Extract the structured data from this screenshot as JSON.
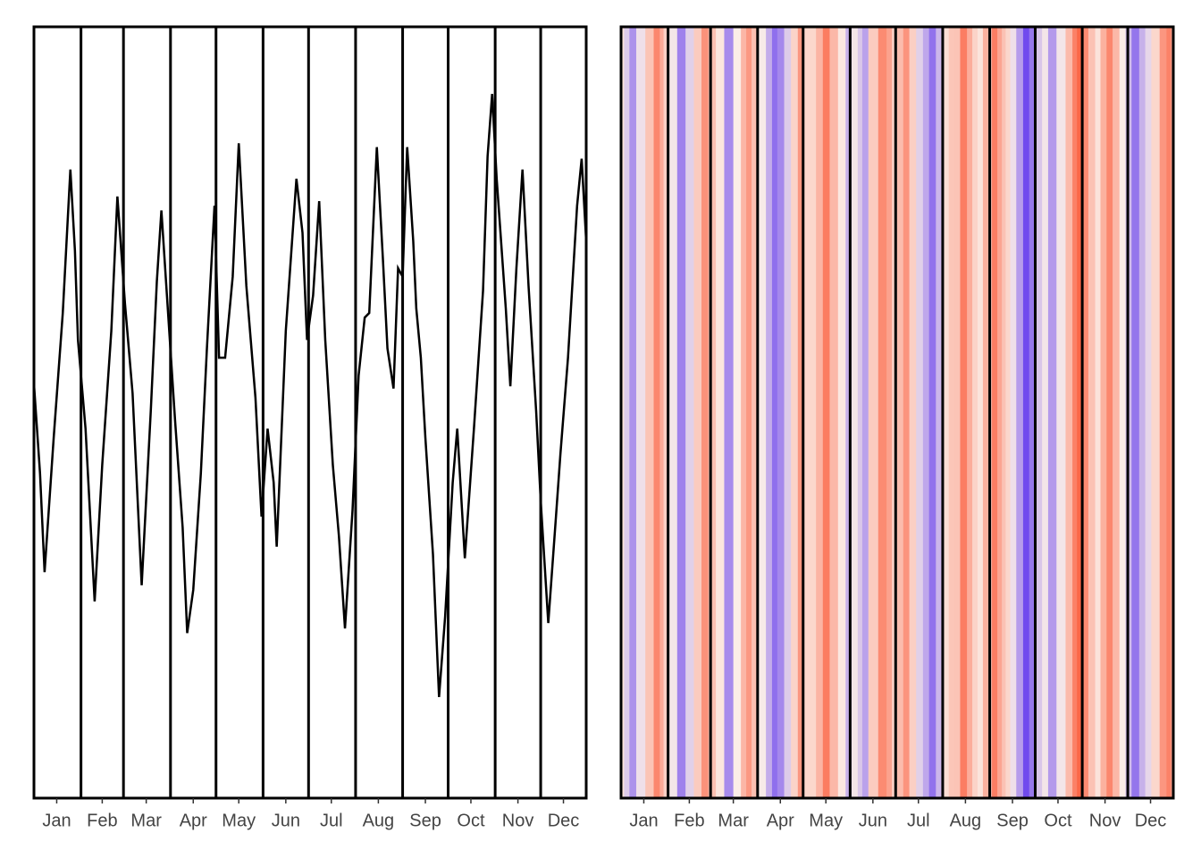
{
  "chart_data": [
    {
      "type": "line",
      "color": "#000000",
      "x": [
        1,
        5,
        8,
        14,
        20,
        25,
        28,
        30,
        35,
        41,
        46,
        52,
        56,
        61,
        66,
        72,
        78,
        82,
        85,
        89,
        94,
        99,
        102,
        106,
        111,
        115,
        120,
        123,
        127,
        132,
        136,
        141,
        147,
        151,
        155,
        159,
        161,
        167,
        174,
        178,
        181,
        185,
        189,
        193,
        198,
        202,
        206,
        211,
        215,
        219,
        222,
        227,
        231,
        234,
        238,
        241,
        244,
        247,
        251,
        253,
        256,
        259,
        264,
        268,
        272,
        277,
        280,
        285,
        291,
        297,
        300,
        303,
        306,
        312,
        315,
        319,
        323,
        327,
        332,
        335,
        340,
        345,
        348,
        353,
        359,
        362,
        365
      ],
      "values": [
        53.7,
        42.1,
        29.3,
        46.7,
        62.9,
        81.5,
        71.0,
        59.4,
        47.9,
        25.5,
        43.2,
        60.6,
        78.0,
        64.1,
        52.5,
        27.6,
        50.2,
        67.0,
        76.2,
        64.1,
        49.0,
        35.1,
        21.4,
        27.0,
        42.1,
        58.3,
        76.8,
        57.1,
        57.1,
        67.6,
        84.9,
        66.4,
        51.9,
        36.5,
        47.9,
        40.9,
        32.6,
        60.6,
        80.3,
        73.3,
        59.4,
        65.2,
        77.4,
        59.4,
        43.2,
        34.0,
        22.0,
        37.4,
        54.8,
        62.3,
        62.9,
        84.4,
        69.9,
        58.3,
        53.1,
        68.7,
        67.6,
        84.4,
        72.2,
        63.5,
        57.1,
        46.7,
        31.6,
        13.1,
        23.5,
        40.9,
        47.9,
        31.1,
        47.9,
        65.8,
        83.2,
        91.3,
        80.3,
        63.5,
        53.4,
        68.7,
        81.5,
        66.4,
        50.2,
        38.6,
        22.7,
        36.3,
        44.6,
        57.1,
        76.8,
        82.9,
        72.2
      ],
      "xlim": [
        1,
        365
      ],
      "ylim": [
        0,
        100
      ],
      "xticks": [
        {
          "value": 16,
          "label": "Jan"
        },
        {
          "value": 46,
          "label": "Feb"
        },
        {
          "value": 75,
          "label": "Mar"
        },
        {
          "value": 106,
          "label": "Apr"
        },
        {
          "value": 136,
          "label": "May"
        },
        {
          "value": 167,
          "label": "Jun"
        },
        {
          "value": 197,
          "label": "Jul"
        },
        {
          "value": 228,
          "label": "Aug"
        },
        {
          "value": 259,
          "label": "Sep"
        },
        {
          "value": 289,
          "label": "Oct"
        },
        {
          "value": 320,
          "label": "Nov"
        },
        {
          "value": 350,
          "label": "Dec"
        }
      ],
      "vlines": [
        32,
        60,
        91,
        121,
        152,
        182,
        213,
        244,
        274,
        305,
        335
      ]
    },
    {
      "type": "heatmap",
      "colors": [
        "#3f10f0",
        "#fbeee8",
        "#fb4a26"
      ],
      "x": [
        1,
        5,
        8,
        14,
        20,
        25,
        28,
        30,
        35,
        41,
        46,
        52,
        56,
        61,
        66,
        72,
        78,
        82,
        85,
        89,
        94,
        99,
        102,
        106,
        111,
        115,
        120,
        123,
        127,
        132,
        136,
        141,
        147,
        151,
        155,
        159,
        161,
        167,
        174,
        178,
        181,
        185,
        189,
        193,
        198,
        202,
        206,
        211,
        215,
        219,
        222,
        227,
        231,
        234,
        238,
        241,
        244,
        247,
        251,
        253,
        256,
        259,
        264,
        268,
        272,
        277,
        280,
        285,
        291,
        297,
        300,
        303,
        306,
        312,
        315,
        319,
        323,
        327,
        332,
        335,
        340,
        345,
        348,
        353,
        359,
        362,
        365
      ],
      "values": [
        53.7,
        42.1,
        29.3,
        46.7,
        62.9,
        81.5,
        71.0,
        59.4,
        47.9,
        25.5,
        43.2,
        60.6,
        78.0,
        64.1,
        52.5,
        27.6,
        50.2,
        67.0,
        76.2,
        64.1,
        49.0,
        35.1,
        21.4,
        27.0,
        42.1,
        58.3,
        76.8,
        57.1,
        57.1,
        67.6,
        84.9,
        66.4,
        51.9,
        36.5,
        47.9,
        40.9,
        32.6,
        60.6,
        80.3,
        73.3,
        59.4,
        65.2,
        77.4,
        59.4,
        43.2,
        34.0,
        22.0,
        37.4,
        54.8,
        62.3,
        62.9,
        84.4,
        69.9,
        58.3,
        53.1,
        68.7,
        67.6,
        84.4,
        72.2,
        63.5,
        57.1,
        46.7,
        31.6,
        13.1,
        23.5,
        40.9,
        47.9,
        31.1,
        47.9,
        65.8,
        83.2,
        91.3,
        80.3,
        63.5,
        53.4,
        68.7,
        81.5,
        66.4,
        50.2,
        38.6,
        22.7,
        36.3,
        44.6,
        57.1,
        76.8,
        82.9,
        72.2
      ],
      "xlim": [
        1,
        365
      ],
      "ylim": [
        0,
        100
      ],
      "xticks": [
        {
          "value": 16,
          "label": "Jan"
        },
        {
          "value": 46,
          "label": "Feb"
        },
        {
          "value": 75,
          "label": "Mar"
        },
        {
          "value": 106,
          "label": "Apr"
        },
        {
          "value": 136,
          "label": "May"
        },
        {
          "value": 167,
          "label": "Jun"
        },
        {
          "value": 197,
          "label": "Jul"
        },
        {
          "value": 228,
          "label": "Aug"
        },
        {
          "value": 259,
          "label": "Sep"
        },
        {
          "value": 289,
          "label": "Oct"
        },
        {
          "value": 320,
          "label": "Nov"
        },
        {
          "value": 350,
          "label": "Dec"
        }
      ],
      "vlines": [
        32,
        60,
        91,
        121,
        152,
        182,
        213,
        244,
        274,
        305,
        335
      ]
    }
  ]
}
